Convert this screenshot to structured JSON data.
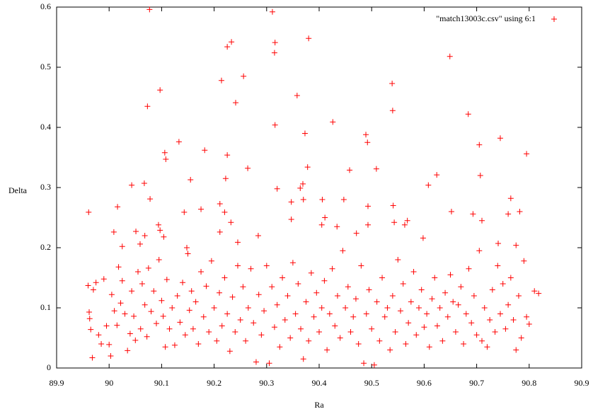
{
  "chart_data": {
    "type": "scatter",
    "xlabel": "Ra",
    "ylabel": "Delta",
    "xlim": [
      89.9,
      90.9
    ],
    "xticks": [
      89.9,
      90,
      90.1,
      90.2,
      90.3,
      90.4,
      90.5,
      90.6,
      90.7,
      90.8,
      90.9
    ],
    "ylim": [
      0,
      0.6
    ],
    "yticks": [
      0,
      0.1,
      0.2,
      0.3,
      0.4,
      0.5,
      0.6
    ],
    "legend": "upper right",
    "x": [
      90.077,
      90.311,
      90.38,
      90.233,
      90.316,
      90.225,
      90.315,
      90.649,
      90.256,
      90.214,
      90.539,
      90.097,
      90.358,
      90.241,
      90.073,
      90.54,
      90.684,
      90.426,
      90.316,
      90.489,
      90.373,
      90.492,
      90.745,
      90.705,
      90.133,
      90.106,
      90.182,
      90.795,
      90.108,
      90.225,
      90.378,
      90.509,
      90.264,
      90.458,
      90.624,
      90.707,
      90.155,
      90.222,
      90.32,
      90.608,
      90.364,
      90.369,
      90.067,
      90.043,
      90.016,
      89.961,
      90.078,
      90.143,
      90.175,
      90.211,
      90.22,
      90.347,
      90.37,
      90.406,
      90.447,
      90.493,
      90.541,
      90.652,
      90.693,
      90.765,
      90.76,
      90.782,
      90.009,
      90.094,
      90.097,
      90.104,
      90.068,
      90.059,
      90.025,
      90.051,
      90.148,
      90.211,
      90.232,
      90.245,
      90.284,
      90.347,
      90.405,
      90.411,
      90.434,
      90.471,
      90.493,
      90.543,
      90.563,
      90.568,
      90.598,
      90.71,
      90.741,
      90.775,
      89.96,
      89.962,
      89.963,
      89.965,
      89.968,
      89.97,
      89.975,
      89.98,
      89.985,
      89.99,
      89.995,
      90.0,
      90.003,
      90.005,
      90.01,
      90.015,
      90.018,
      90.022,
      90.025,
      90.03,
      90.035,
      90.04,
      90.043,
      90.047,
      90.05,
      90.055,
      90.06,
      90.063,
      90.068,
      90.072,
      90.075,
      90.08,
      90.085,
      90.09,
      90.095,
      90.1,
      90.103,
      90.107,
      90.11,
      90.115,
      90.12,
      90.125,
      90.13,
      90.135,
      90.14,
      90.145,
      90.15,
      90.153,
      90.157,
      90.16,
      90.165,
      90.17,
      90.175,
      90.18,
      90.185,
      90.19,
      90.195,
      90.2,
      90.205,
      90.21,
      90.215,
      90.22,
      90.225,
      90.23,
      90.235,
      90.24,
      90.245,
      90.25,
      90.255,
      90.26,
      90.265,
      90.27,
      90.275,
      90.28,
      90.285,
      90.29,
      90.295,
      90.3,
      90.305,
      90.31,
      90.315,
      90.32,
      90.325,
      90.33,
      90.335,
      90.34,
      90.345,
      90.35,
      90.355,
      90.36,
      90.365,
      90.37,
      90.375,
      90.38,
      90.385,
      90.39,
      90.395,
      90.4,
      90.405,
      90.41,
      90.415,
      90.42,
      90.425,
      90.43,
      90.435,
      90.44,
      90.445,
      90.45,
      90.455,
      90.46,
      90.465,
      90.47,
      90.475,
      90.48,
      90.485,
      90.49,
      90.495,
      90.5,
      90.505,
      90.51,
      90.515,
      90.52,
      90.525,
      90.53,
      90.535,
      90.54,
      90.545,
      90.55,
      90.555,
      90.56,
      90.565,
      90.57,
      90.575,
      90.58,
      90.585,
      90.59,
      90.595,
      90.6,
      90.605,
      90.61,
      90.615,
      90.62,
      90.625,
      90.63,
      90.635,
      90.64,
      90.645,
      90.65,
      90.655,
      90.66,
      90.665,
      90.67,
      90.675,
      90.68,
      90.685,
      90.69,
      90.695,
      90.7,
      90.705,
      90.71,
      90.715,
      90.72,
      90.725,
      90.73,
      90.735,
      90.74,
      90.745,
      90.75,
      90.755,
      90.76,
      90.765,
      90.77,
      90.775,
      90.78,
      90.785,
      90.79,
      90.795,
      90.8,
      90.81,
      90.818
    ],
    "series": [
      {
        "name": "\"match13003c.csv\" using 6:1",
        "color": "#ff0000",
        "values": [
          0.596,
          0.592,
          0.548,
          0.542,
          0.541,
          0.534,
          0.524,
          0.518,
          0.485,
          0.478,
          0.473,
          0.462,
          0.453,
          0.441,
          0.435,
          0.428,
          0.422,
          0.409,
          0.404,
          0.388,
          0.39,
          0.375,
          0.382,
          0.371,
          0.376,
          0.358,
          0.362,
          0.356,
          0.347,
          0.354,
          0.334,
          0.331,
          0.332,
          0.329,
          0.321,
          0.32,
          0.313,
          0.315,
          0.298,
          0.304,
          0.299,
          0.306,
          0.307,
          0.304,
          0.268,
          0.259,
          0.281,
          0.259,
          0.264,
          0.273,
          0.259,
          0.276,
          0.28,
          0.28,
          0.28,
          0.269,
          0.27,
          0.26,
          0.256,
          0.282,
          0.256,
          0.26,
          0.226,
          0.238,
          0.229,
          0.218,
          0.22,
          0.206,
          0.202,
          0.227,
          0.2,
          0.226,
          0.242,
          0.209,
          0.22,
          0.247,
          0.238,
          0.25,
          0.235,
          0.224,
          0.238,
          0.242,
          0.238,
          0.245,
          0.216,
          0.245,
          0.207,
          0.204,
          0.137,
          0.093,
          0.082,
          0.064,
          0.017,
          0.13,
          0.142,
          0.055,
          0.04,
          0.148,
          0.07,
          0.039,
          0.02,
          0.122,
          0.095,
          0.071,
          0.168,
          0.108,
          0.145,
          0.09,
          0.029,
          0.057,
          0.128,
          0.086,
          0.046,
          0.16,
          0.065,
          0.14,
          0.105,
          0.052,
          0.166,
          0.094,
          0.128,
          0.074,
          0.18,
          0.112,
          0.086,
          0.035,
          0.147,
          0.065,
          0.1,
          0.038,
          0.12,
          0.076,
          0.142,
          0.055,
          0.19,
          0.096,
          0.128,
          0.065,
          0.11,
          0.04,
          0.16,
          0.085,
          0.136,
          0.06,
          0.178,
          0.1,
          0.045,
          0.125,
          0.07,
          0.15,
          0.09,
          0.028,
          0.118,
          0.06,
          0.17,
          0.08,
          0.135,
          0.045,
          0.1,
          0.165,
          0.075,
          0.01,
          0.122,
          0.055,
          0.095,
          0.17,
          0.008,
          0.135,
          0.068,
          0.105,
          0.035,
          0.15,
          0.08,
          0.12,
          0.05,
          0.175,
          0.09,
          0.14,
          0.065,
          0.015,
          0.11,
          0.045,
          0.158,
          0.085,
          0.125,
          0.06,
          0.1,
          0.145,
          0.03,
          0.09,
          0.165,
          0.07,
          0.12,
          0.05,
          0.195,
          0.1,
          0.135,
          0.06,
          0.085,
          0.115,
          0.04,
          0.17,
          0.008,
          0.09,
          0.13,
          0.065,
          0.005,
          0.11,
          0.045,
          0.15,
          0.085,
          0.1,
          0.03,
          0.12,
          0.06,
          0.18,
          0.095,
          0.14,
          0.04,
          0.075,
          0.11,
          0.16,
          0.055,
          0.1,
          0.13,
          0.068,
          0.09,
          0.035,
          0.115,
          0.15,
          0.07,
          0.1,
          0.045,
          0.125,
          0.085,
          0.155,
          0.11,
          0.06,
          0.105,
          0.135,
          0.04,
          0.09,
          0.165,
          0.075,
          0.12,
          0.055,
          0.195,
          0.045,
          0.1,
          0.035,
          0.08,
          0.13,
          0.06,
          0.17,
          0.09,
          0.14,
          0.065,
          0.105,
          0.15,
          0.08,
          0.03,
          0.12,
          0.05,
          0.178,
          0.085,
          0.073,
          0.128,
          0.124
        ]
      }
    ]
  }
}
